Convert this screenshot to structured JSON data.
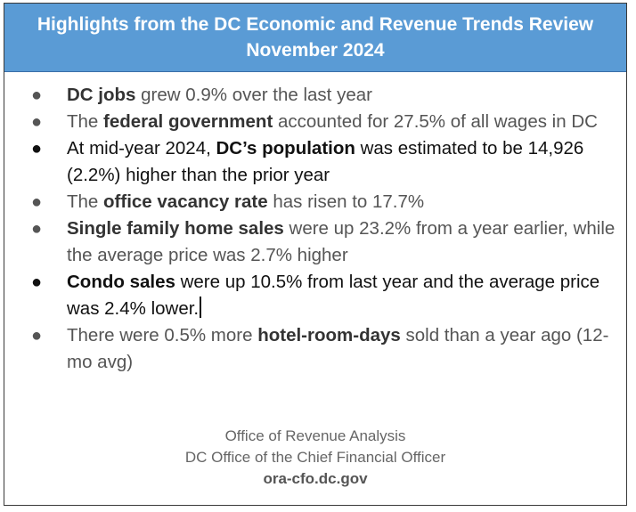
{
  "header": {
    "line1": "Highlights from the DC Economic and Revenue Trends Review",
    "line2": "November 2024",
    "background_color": "#5a9bd5"
  },
  "bullet_glyph": "●",
  "items": [
    {
      "b1": "DC jobs",
      "t1": " grew 0.9% over the last year"
    },
    {
      "t0": "The ",
      "b1": "federal government",
      "t1": " accounted for 27.5% of all wages in DC"
    },
    {
      "t0": "At mid-year 2024, ",
      "b1": "DC’s population",
      "t1": " was estimated to be 14,926 (2.2%) higher than the prior year"
    },
    {
      "t0": "The ",
      "b1": "office vacancy rate",
      "t1": " has risen to 17.7%"
    },
    {
      "b1": "Single family home sales",
      "t1": " were up 23.2% from a year earlier, while the average price was 2.7% higher"
    },
    {
      "b1": "Condo sales",
      "t1": " were up 10.5% from last year and the average price was 2.4% lower."
    },
    {
      "t0": "There were 0.5% more ",
      "b1": "hotel-room-days",
      "t1": " sold than a year ago (12-mo avg)"
    }
  ],
  "footer": {
    "line1": "Office of Revenue Analysis",
    "line2": "DC Office of the Chief Financial Officer",
    "url": "ora-cfo.dc.gov"
  }
}
